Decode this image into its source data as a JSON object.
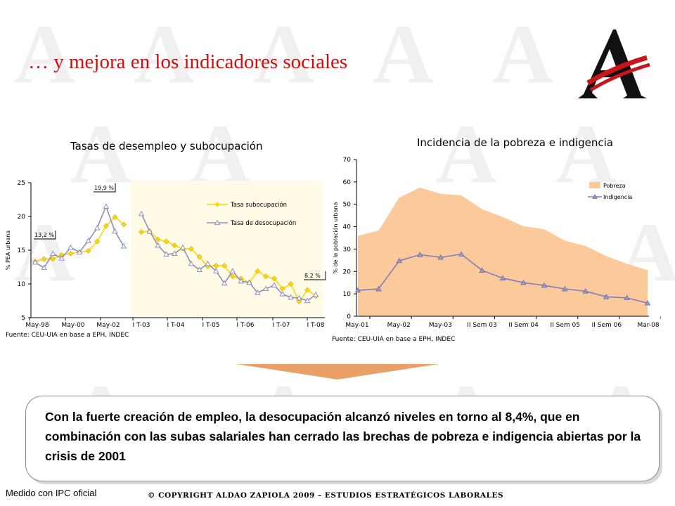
{
  "slide": {
    "title": "… y mejora en los indicadores sociales",
    "summary": "Con la fuerte creación de empleo, la desocupación alcanzó niveles en torno al 8,4%, que en combinación con las subas salariales han cerrado las brechas de pobreza e indigencia abiertas por la crisis de 2001",
    "footnote": "Medido con IPC oficial",
    "copyright": "© COPYRIGHT ALDAO ZAPIOLA 2009 – ESTUDIOS ESTRATÉGICOS LABORALES",
    "arrow_color": "#e9a066"
  },
  "chart_data": [
    {
      "type": "line",
      "title": "Tasas de desempleo y subocupación",
      "ylabel": "% PEA urbana",
      "source": "Fuente: CEU-UIA en base a EPH, INDEC",
      "ylim": [
        5,
        25
      ],
      "yticks": [
        5,
        10,
        15,
        20,
        25
      ],
      "xtick_labels_left": [
        "May-98",
        "May-00",
        "May-02"
      ],
      "xtick_labels_right": [
        "I T-03",
        "I T-04",
        "I T-05",
        "I T-06",
        "I T-07",
        "I T-08"
      ],
      "annotations": [
        "13,2 %",
        "19,9 %",
        "8,2 %"
      ],
      "legend_position": "top-right",
      "grid": false,
      "shaded_region_color": "#fffbe6",
      "series": [
        {
          "name": "Tasa subocupación",
          "color": "#ffd700",
          "left": [
            13.3,
            13.7,
            13.7,
            14.3,
            14.5,
            14.7,
            14.9,
            16.3,
            18.6,
            19.9,
            18.8
          ],
          "right": [
            17.7,
            17.8,
            16.6,
            16.3,
            15.7,
            15.2,
            15.2,
            14.0,
            12.6,
            12.7,
            12.7,
            11.1,
            10.8,
            10.2,
            11.9,
            11.1,
            10.8,
            9.3,
            10.0,
            7.4,
            9.1,
            8.2
          ]
        },
        {
          "name": "Tasa de desocupación",
          "color": "#8e8ebe",
          "left": [
            13.2,
            12.4,
            14.5,
            13.8,
            15.4,
            14.7,
            16.4,
            18.3,
            21.5,
            17.8,
            15.6
          ],
          "right": [
            20.4,
            17.8,
            15.7,
            14.4,
            14.5,
            15.4,
            13.0,
            12.1,
            13.0,
            11.9,
            10.1,
            11.9,
            10.4,
            10.2,
            8.7,
            9.3,
            9.8,
            8.5,
            8.0,
            7.9,
            7.5,
            8.4
          ]
        }
      ]
    },
    {
      "type": "area",
      "title": "Incidencia de la pobreza e indigencia",
      "ylabel": "% de la población urbana",
      "source": "Fuente: CEU-UIA en base a EPH, INDEC",
      "ylim": [
        0,
        70
      ],
      "yticks": [
        0,
        10,
        20,
        30,
        40,
        50,
        60,
        70
      ],
      "xtick_labels": [
        "May-01",
        "May-02",
        "May-03",
        "II Sem 03",
        "II Sem 04",
        "II Sem 05",
        "II Sem 06",
        "Mar-08"
      ],
      "legend_position": "top-right",
      "grid": false,
      "series": [
        {
          "name": "Pobreza",
          "kind": "area",
          "color": "#fbc99a",
          "values": [
            35.9,
            38.3,
            53.0,
            57.5,
            54.7,
            54.0,
            47.8,
            44.3,
            40.2,
            38.9,
            33.8,
            31.4,
            26.9,
            23.4,
            20.6
          ]
        },
        {
          "name": "Indigencia",
          "kind": "line",
          "color": "#7f7fbf",
          "values": [
            11.6,
            12.2,
            24.8,
            27.5,
            26.3,
            27.7,
            20.5,
            17.0,
            15.0,
            13.8,
            12.2,
            11.2,
            8.7,
            8.2,
            5.9
          ]
        }
      ]
    }
  ]
}
